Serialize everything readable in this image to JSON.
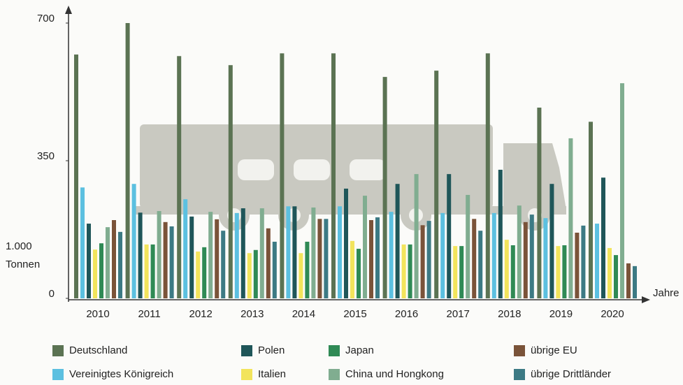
{
  "chart_data": {
    "type": "bar",
    "y_label": "1.000 Tonnen",
    "x_label": "Jahre",
    "categories": [
      "2010",
      "2011",
      "2012",
      "2013",
      "2014",
      "2015",
      "2016",
      "2017",
      "2018",
      "2019",
      "2020"
    ],
    "ylim": [
      0,
      700
    ],
    "yticks": [
      0,
      350,
      700
    ],
    "series": [
      {
        "name": "Deutschland",
        "color": "#5b7353",
        "values": [
          620,
          700,
          616,
          593,
          623,
          623,
          563,
          579,
          623,
          485,
          449
        ]
      },
      {
        "name": "Vereinigtes Königreich",
        "color": "#5cc0e0",
        "values": [
          282,
          291,
          252,
          217,
          234,
          234,
          220,
          217,
          217,
          204,
          190
        ]
      },
      {
        "name": "Polen",
        "color": "#1f5659",
        "values": [
          190,
          218,
          208,
          229,
          234,
          279,
          291,
          316,
          327,
          291,
          307
        ]
      },
      {
        "name": "Italien",
        "color": "#f2e45c",
        "values": [
          124,
          137,
          119,
          115,
          115,
          146,
          137,
          133,
          149,
          133,
          128
        ]
      },
      {
        "name": "Japan",
        "color": "#2f8a55",
        "values": [
          140,
          137,
          130,
          123,
          144,
          126,
          137,
          133,
          135,
          135,
          110
        ]
      },
      {
        "name": "China und Hongkong",
        "color": "#80ad90",
        "values": [
          181,
          222,
          220,
          229,
          231,
          261,
          316,
          263,
          236,
          407,
          547
        ]
      },
      {
        "name": "übrige EU",
        "color": "#7a5339",
        "values": [
          199,
          194,
          201,
          178,
          202,
          199,
          186,
          202,
          194,
          167,
          89
        ]
      },
      {
        "name": "übrige Drittländer",
        "color": "#3c7a84",
        "values": [
          169,
          183,
          172,
          144,
          202,
          206,
          197,
          172,
          213,
          185,
          82
        ]
      }
    ]
  }
}
